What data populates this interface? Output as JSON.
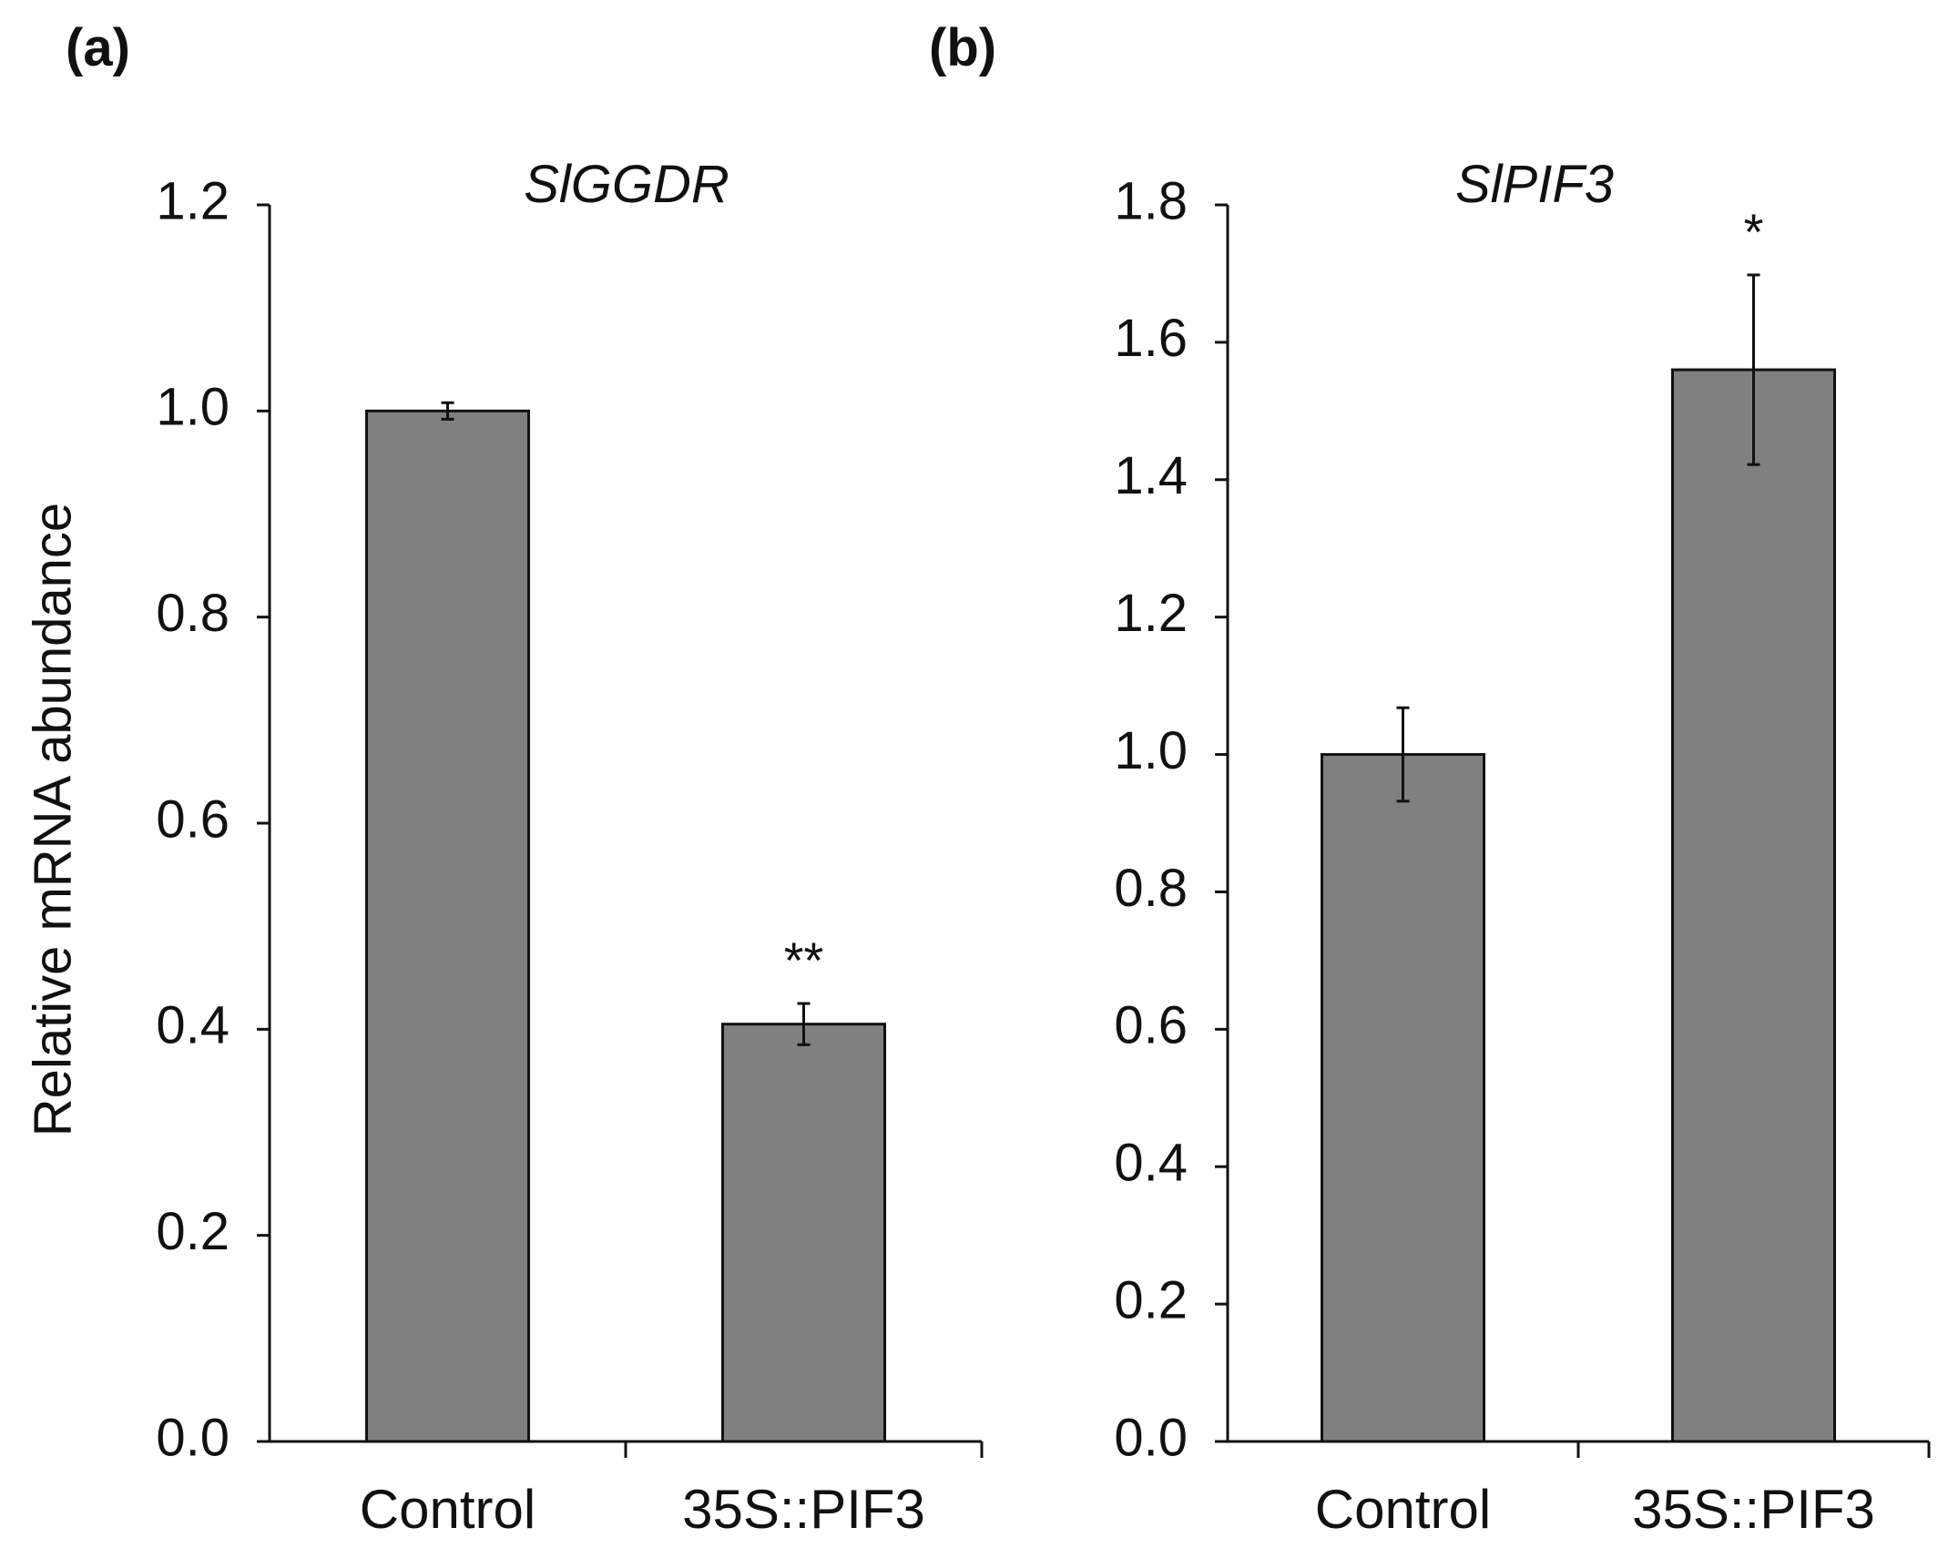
{
  "figure": {
    "y_axis_title": "Relative mRNA abundance"
  },
  "colors": {
    "bar_fill": "#808080",
    "axis": "#111111",
    "background": "#ffffff"
  },
  "chart_data": [
    {
      "type": "bar",
      "panel": "(a)",
      "title": "SlGGDR",
      "xlabel": "",
      "ylabel": "Relative mRNA abundance",
      "ylim": [
        0,
        1.2
      ],
      "yticks": [
        "0.0",
        "0.2",
        "0.4",
        "0.6",
        "0.8",
        "1.0",
        "1.2"
      ],
      "categories": [
        "Control",
        "35S::PIF3"
      ],
      "values": [
        1.0,
        0.405
      ],
      "errors": [
        0.008,
        0.02
      ],
      "significance": [
        "",
        "**"
      ],
      "grid": false,
      "legend": "none"
    },
    {
      "type": "bar",
      "panel": "(b)",
      "title": "SlPIF3",
      "xlabel": "",
      "ylabel": "",
      "ylim": [
        0,
        1.8
      ],
      "yticks": [
        "0.0",
        "0.2",
        "0.4",
        "0.6",
        "0.8",
        "1.0",
        "1.2",
        "1.4",
        "1.6",
        "1.8"
      ],
      "categories": [
        "Control",
        "35S::PIF3"
      ],
      "values": [
        1.0,
        1.56
      ],
      "errors": [
        0.068,
        0.138
      ],
      "significance": [
        "",
        "*"
      ],
      "grid": false,
      "legend": "none"
    }
  ]
}
